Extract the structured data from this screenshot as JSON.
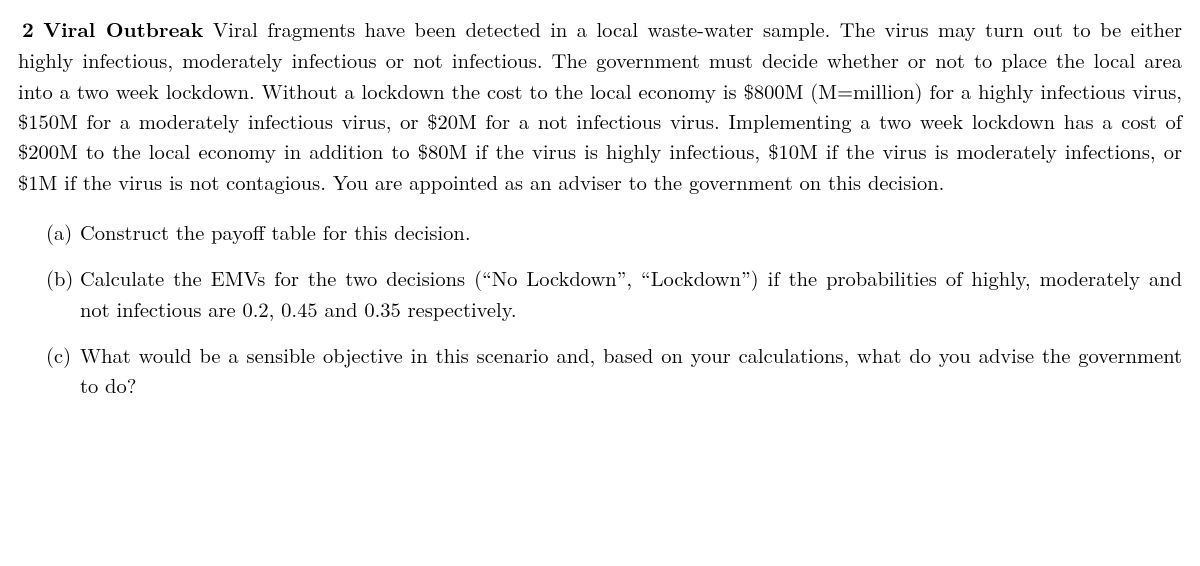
{
  "problem": {
    "number": "2",
    "title": "Viral Outbreak",
    "intro": "Viral fragments have been detected in a local waste-water sample. The virus may turn out to be either highly infectious, moderately infectious or not infectious. The government must decide whether or not to place the local area into a two week lockdown. Without a lockdown the cost to the local economy is $800M (M=million) for a highly infectious virus, $150M for a moderately infectious virus, or $20M for a not infectious virus. Implementing a two week lockdown has a cost of $200M to the local economy in addition to $80M if the virus is highly infectious, $10M if the virus is moderately infections, or $1M if the virus is not contagious. You are appointed as an adviser to the government on this decision."
  },
  "subparts": [
    {
      "label": "(a)",
      "text": "Construct the payoff table for this decision."
    },
    {
      "label": "(b)",
      "text": "Calculate the EMVs for the two decisions (“No Lockdown”, “Lockdown”) if the probabilities of highly, moderately and not infectious are 0.2, 0.45 and 0.35 respectively."
    },
    {
      "label": "(c)",
      "text": "What would be a sensible objective in this scenario and, based on your calculations, what do you advise the government to do?"
    }
  ]
}
